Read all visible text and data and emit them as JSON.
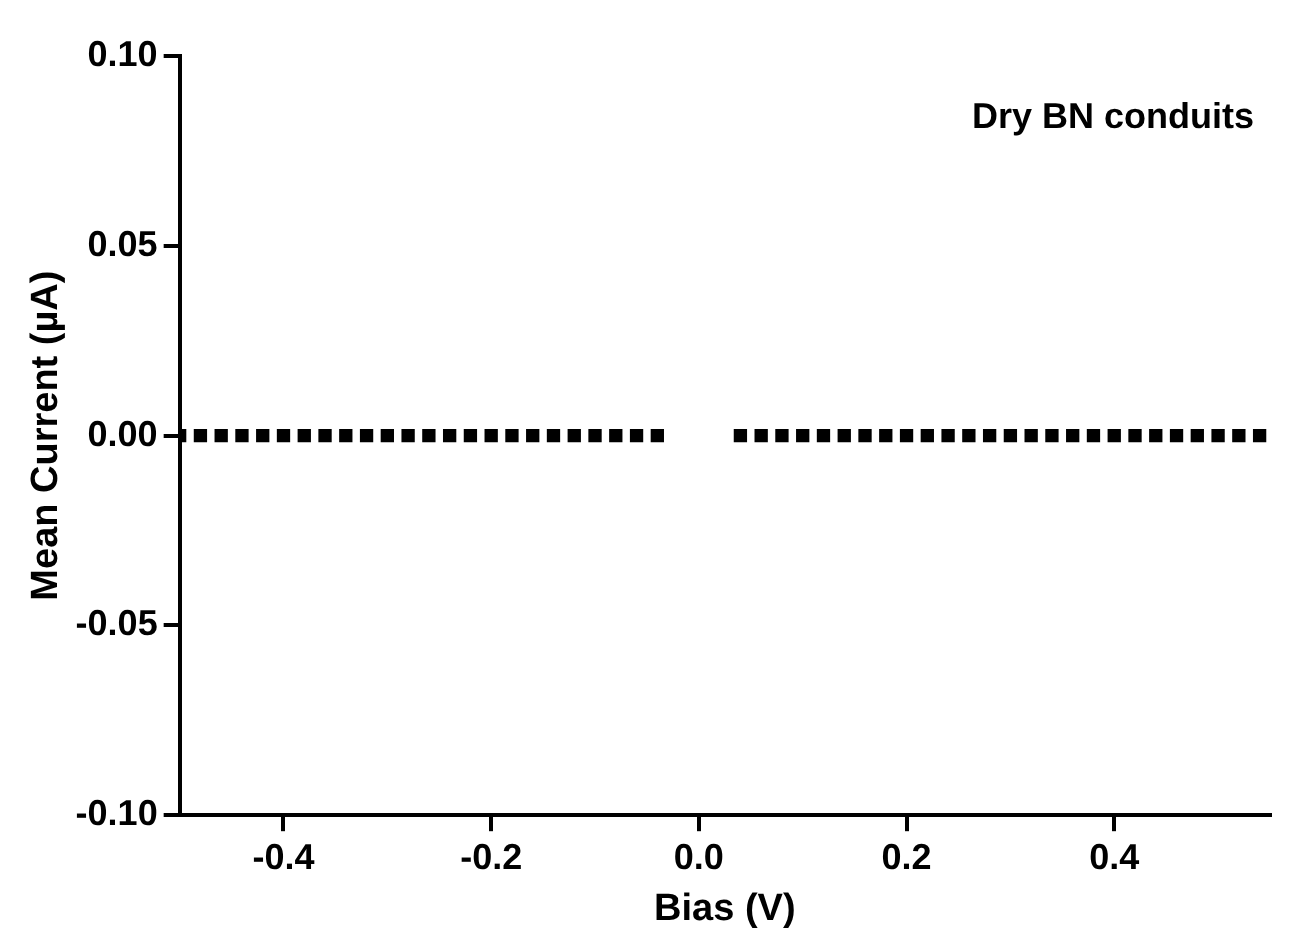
{
  "chart_data": {
    "type": "scatter",
    "xlabel": "Bias (V)",
    "ylabel": "Mean Current (µA)",
    "annotations": [
      "Dry BN conduits"
    ],
    "x": [
      -0.5,
      -0.48,
      -0.46,
      -0.44,
      -0.42,
      -0.4,
      -0.38,
      -0.36,
      -0.34,
      -0.32,
      -0.3,
      -0.28,
      -0.26,
      -0.24,
      -0.22,
      -0.2,
      -0.18,
      -0.16,
      -0.14,
      -0.12,
      -0.1,
      -0.08,
      -0.06,
      -0.04,
      0.04,
      0.06,
      0.08,
      0.1,
      0.12,
      0.14,
      0.16,
      0.18,
      0.2,
      0.22,
      0.24,
      0.26,
      0.28,
      0.3,
      0.32,
      0.34,
      0.36,
      0.38,
      0.4,
      0.42,
      0.44,
      0.46,
      0.48,
      0.5,
      0.52,
      0.54
    ],
    "series": [
      {
        "color": "#000000",
        "values": [
          0,
          0,
          0,
          0,
          0,
          0,
          0,
          0,
          0,
          0,
          0,
          0,
          0,
          0,
          0,
          0,
          0,
          0,
          0,
          0,
          0,
          0,
          0,
          0,
          0,
          0,
          0,
          0,
          0,
          0,
          0,
          0,
          0,
          0,
          0,
          0,
          0,
          0,
          0,
          0,
          0,
          0,
          0,
          0,
          0,
          0,
          0,
          0,
          0,
          0
        ]
      }
    ],
    "xlim": [
      -0.5,
      0.55
    ],
    "xticks": [
      {
        "value": -0.4,
        "label": "-0.4"
      },
      {
        "value": -0.2,
        "label": "-0.2"
      },
      {
        "value": 0,
        "label": "0.0"
      },
      {
        "value": 0.2,
        "label": "0.2"
      },
      {
        "value": 0.4,
        "label": "0.4"
      }
    ],
    "ylim": [
      -0.1,
      0.1
    ],
    "yticks": [
      {
        "value": -0.1,
        "label": "-0.10"
      },
      {
        "value": -0.05,
        "label": "-0.05"
      },
      {
        "value": 0,
        "label": "0.00"
      },
      {
        "value": 0.05,
        "label": "0.05"
      },
      {
        "value": 0.1,
        "label": "0.10"
      }
    ],
    "grid": false,
    "legend": false,
    "marker": "square"
  }
}
